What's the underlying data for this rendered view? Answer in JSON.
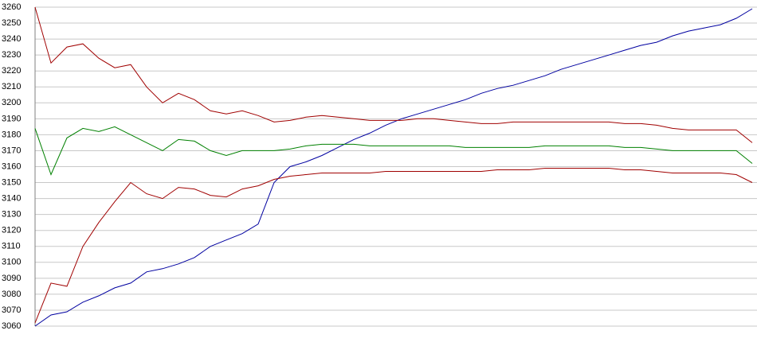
{
  "chart_data": {
    "type": "line",
    "ylim": [
      3060,
      3260
    ],
    "yticks": [
      3060,
      3070,
      3080,
      3090,
      3100,
      3110,
      3120,
      3130,
      3140,
      3150,
      3160,
      3170,
      3180,
      3190,
      3200,
      3210,
      3220,
      3230,
      3240,
      3250,
      3260
    ],
    "grid": true,
    "series": [
      {
        "color": "#0000a0",
        "values": [
          3060,
          3067,
          3069,
          3075,
          3079,
          3084,
          3087,
          3094,
          3096,
          3099,
          3103,
          3110,
          3114,
          3118,
          3124,
          3150,
          3160,
          3163,
          3167,
          3172,
          3177,
          3181,
          3186,
          3190,
          3193,
          3196,
          3199,
          3202,
          3206,
          3209,
          3211,
          3214,
          3217,
          3221,
          3224,
          3227,
          3230,
          3233,
          3236,
          3238,
          3242,
          3245,
          3247,
          3249,
          3253,
          3259
        ]
      },
      {
        "color": "#a00000",
        "values": [
          3260,
          3225,
          3235,
          3237,
          3228,
          3222,
          3224,
          3210,
          3200,
          3206,
          3202,
          3195,
          3193,
          3195,
          3192,
          3188,
          3189,
          3191,
          3192,
          3191,
          3190,
          3189,
          3189,
          3189,
          3190,
          3190,
          3189,
          3188,
          3187,
          3187,
          3188,
          3188,
          3188,
          3188,
          3188,
          3188,
          3188,
          3187,
          3187,
          3186,
          3184,
          3183,
          3183,
          3183,
          3183,
          3175
        ]
      },
      {
        "color": "#008000",
        "values": [
          3184,
          3155,
          3178,
          3184,
          3182,
          3185,
          3180,
          3175,
          3170,
          3177,
          3176,
          3170,
          3167,
          3170,
          3170,
          3170,
          3171,
          3173,
          3174,
          3174,
          3174,
          3173,
          3173,
          3173,
          3173,
          3173,
          3173,
          3172,
          3172,
          3172,
          3172,
          3172,
          3173,
          3173,
          3173,
          3173,
          3173,
          3172,
          3172,
          3171,
          3170,
          3170,
          3170,
          3170,
          3170,
          3162
        ]
      },
      {
        "color": "#a00000",
        "values": [
          3062,
          3087,
          3085,
          3110,
          3125,
          3138,
          3150,
          3143,
          3140,
          3147,
          3146,
          3142,
          3141,
          3146,
          3148,
          3152,
          3154,
          3155,
          3156,
          3156,
          3156,
          3156,
          3157,
          3157,
          3157,
          3157,
          3157,
          3157,
          3157,
          3158,
          3158,
          3158,
          3159,
          3159,
          3159,
          3159,
          3159,
          3158,
          3158,
          3157,
          3156,
          3156,
          3156,
          3156,
          3155,
          3150
        ]
      }
    ]
  }
}
